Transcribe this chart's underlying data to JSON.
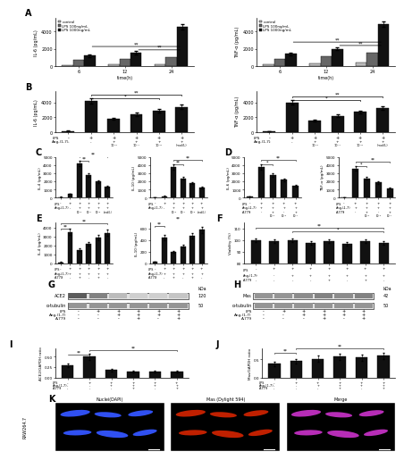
{
  "panel_A": {
    "IL6": {
      "groups": [
        "6",
        "12",
        "24"
      ],
      "control": [
        150,
        200,
        250
      ],
      "LPS100": [
        700,
        800,
        1000
      ],
      "LPS1000": [
        1200,
        1500,
        4500
      ],
      "ylabel": "IL-6 (pg/mL)",
      "xlabel": "time(h)",
      "ylim": [
        0,
        5500
      ]
    },
    "TNFa": {
      "groups": [
        "6",
        "12",
        "24"
      ],
      "control": [
        200,
        300,
        400
      ],
      "LPS100": [
        800,
        1100,
        1500
      ],
      "LPS1000": [
        1400,
        2000,
        4800
      ],
      "ylabel": "TNF-α (pg/mL)",
      "xlabel": "time(h)",
      "ylim": [
        0,
        5500
      ]
    }
  },
  "panel_B": {
    "IL6": {
      "values": [
        150,
        4200,
        1800,
        2400,
        2900,
        3400
      ],
      "ylabel": "IL-6 (pg/mL)",
      "ylim": [
        0,
        5500
      ],
      "lps_signs": [
        "-",
        "+",
        "+",
        "+",
        "+",
        "+"
      ],
      "ang_signs": [
        "-",
        "-",
        "+",
        "+",
        "+",
        "+"
      ],
      "ang_labels": [
        "",
        "",
        "10⁻⁶",
        "10⁻⁷",
        "10⁻⁸",
        "(mol/L)"
      ]
    },
    "TNFa": {
      "values": [
        50,
        4000,
        1600,
        2200,
        2700,
        3200
      ],
      "ylabel": "TNF-α (pg/mL)",
      "ylim": [
        0,
        5500
      ],
      "lps_signs": [
        "-",
        "+",
        "+",
        "+",
        "+",
        "+"
      ],
      "ang_signs": [
        "-",
        "-",
        "+",
        "+",
        "+",
        "+"
      ],
      "ang_labels": [
        "",
        "",
        "10⁻⁶",
        "10⁻⁷",
        "10⁻⁸",
        "(mol/L)"
      ]
    }
  },
  "panel_C": {
    "IL4": {
      "values": [
        100,
        500,
        4200,
        2800,
        2000,
        1400
      ],
      "ylabel": "IL-4 (pg/mL)",
      "ylim": [
        0,
        5000
      ],
      "lps_signs": [
        "-",
        "+",
        "+",
        "+",
        "+",
        "+"
      ],
      "ang_signs": [
        "-",
        "-",
        "+",
        "+",
        "+",
        "+"
      ],
      "ang_labels": [
        "",
        "",
        "10⁻⁶",
        "10⁻⁷",
        "10⁻⁸",
        "(mol/L)"
      ]
    },
    "IL10": {
      "values": [
        50,
        200,
        3800,
        2400,
        1800,
        1300
      ],
      "ylabel": "IL-10 (pg/mL)",
      "ylim": [
        0,
        5000
      ],
      "lps_signs": [
        "-",
        "+",
        "+",
        "+",
        "+",
        "+"
      ],
      "ang_signs": [
        "-",
        "-",
        "+",
        "+",
        "+",
        "+"
      ],
      "ang_labels": [
        "",
        "",
        "10⁻⁶",
        "10⁻⁷",
        "10⁻⁸",
        "(mol/L)"
      ]
    }
  },
  "panel_D": {
    "IL6": {
      "values": [
        150,
        3800,
        2800,
        2200,
        1500
      ],
      "ylabel": "IL-6 (pg/mL)",
      "ylim": [
        0,
        5000
      ],
      "lps_signs": [
        "-",
        "+",
        "+",
        "+",
        "+"
      ],
      "ang_signs": [
        "-",
        "+",
        "+",
        "+",
        "+"
      ],
      "a779_signs": [
        "-",
        "-",
        "+",
        "-",
        "+"
      ],
      "a779_labels": [
        "",
        "",
        "10⁻⁵",
        "10⁻⁶",
        "10⁻⁷"
      ]
    },
    "TNFa": {
      "values": [
        50,
        3600,
        2400,
        1900,
        1200
      ],
      "ylabel": "TNF-α (pg/mL)",
      "ylim": [
        0,
        5000
      ],
      "lps_signs": [
        "-",
        "+",
        "+",
        "+",
        "+"
      ],
      "ang_signs": [
        "-",
        "+",
        "+",
        "+",
        "+"
      ],
      "a779_signs": [
        "-",
        "-",
        "+",
        "-",
        "+"
      ],
      "a779_labels": [
        "",
        "",
        "10⁻⁵",
        "10⁻⁶",
        "10⁻⁷"
      ]
    }
  },
  "panel_E": {
    "IL4": {
      "values": [
        150,
        3500,
        1500,
        2200,
        2900,
        3400
      ],
      "ylabel": "IL-4 (pg/mL)",
      "ylim": [
        0,
        4500
      ],
      "lps_signs": [
        "-",
        "+",
        "+",
        "+",
        "+",
        "+"
      ],
      "ang_signs": [
        "-",
        "+",
        "+",
        "+",
        "+",
        "+"
      ],
      "a779_signs": [
        "-",
        "-",
        "+",
        "-",
        "+",
        "-"
      ],
      "a779_labels": [
        "",
        "",
        "10⁻⁵",
        "10⁻⁶",
        "10⁻⁷",
        ""
      ]
    },
    "IL10": {
      "values": [
        30,
        450,
        200,
        300,
        480,
        580
      ],
      "ylabel": "IL-10 (pg/mL)",
      "ylim": [
        0,
        700
      ],
      "lps_signs": [
        "-",
        "+",
        "+",
        "+",
        "+",
        "+"
      ],
      "ang_signs": [
        "-",
        "+",
        "+",
        "+",
        "+",
        "+"
      ],
      "a779_signs": [
        "-",
        "-",
        "+",
        "-",
        "+",
        "-"
      ],
      "a779_labels": [
        "",
        "",
        "10⁻⁵",
        "10⁻⁶",
        "10⁻⁷",
        ""
      ]
    }
  },
  "panel_F": {
    "values": [
      100,
      99,
      100,
      98,
      99,
      97,
      99,
      98
    ],
    "ylabel": "Viability (%)",
    "ylim": [
      80,
      115
    ],
    "lps_signs": [
      "-",
      "+",
      "+",
      "+",
      "+",
      "+",
      "+",
      "+"
    ],
    "ang_signs": [
      "-",
      "-",
      "+",
      "+",
      "+",
      "+",
      "+",
      "+"
    ],
    "a779_signs": [
      "-",
      "-",
      "-",
      "-",
      "+",
      "-",
      "+",
      "-"
    ]
  },
  "panel_G": {
    "bands": [
      "ACE2",
      "α-tubulin"
    ],
    "kda": [
      "120",
      "50"
    ],
    "conditions": [
      "LPS",
      "Ang-(1-7)",
      "A-779"
    ],
    "signs": [
      [
        "-",
        "+",
        "+",
        "+",
        "+",
        "+"
      ],
      [
        "-",
        "-",
        "+",
        "+",
        "+",
        "+"
      ],
      [
        "-",
        "-",
        "-",
        "+",
        "-",
        "+"
      ]
    ],
    "ace2_intensities": [
      0.85,
      0.65,
      0.35,
      0.25,
      0.25,
      0.3
    ],
    "tub_intensities": [
      0.55,
      0.55,
      0.55,
      0.55,
      0.55,
      0.55
    ]
  },
  "panel_H": {
    "bands": [
      "Mas",
      "α-tubulin"
    ],
    "kda": [
      "42",
      "50"
    ],
    "conditions": [
      "LPS",
      "Ang-(1-7)",
      "A-779"
    ],
    "signs": [
      [
        "-",
        "+",
        "+",
        "+",
        "+",
        "+"
      ],
      [
        "-",
        "-",
        "+",
        "+",
        "+",
        "+"
      ],
      [
        "-",
        "-",
        "-",
        "+",
        "-",
        "+"
      ]
    ],
    "mas_intensities": [
      0.55,
      0.55,
      0.6,
      0.65,
      0.6,
      0.65
    ],
    "tub_intensities": [
      0.55,
      0.55,
      0.55,
      0.55,
      0.55,
      0.55
    ]
  },
  "panel_I": {
    "values": [
      0.3,
      0.5,
      0.18,
      0.15,
      0.14,
      0.14
    ],
    "ylabel": "ACE2/GAPDH ratio",
    "ylim": [
      0,
      0.7
    ],
    "lps_signs": [
      "-",
      "+",
      "+",
      "+",
      "+",
      "+"
    ],
    "ang_signs": [
      "-",
      "-",
      "+",
      "+",
      "+",
      "+"
    ],
    "a779_signs": [
      "-",
      "-",
      "-",
      "+",
      "-",
      "+"
    ]
  },
  "panel_J": {
    "values": [
      0.38,
      0.45,
      0.52,
      0.58,
      0.55,
      0.6
    ],
    "ylabel": "Mas/GAPDH ratio",
    "ylim": [
      0,
      0.8
    ],
    "lps_signs": [
      "-",
      "+",
      "+",
      "+",
      "+",
      "+"
    ],
    "ang_signs": [
      "-",
      "-",
      "+",
      "+",
      "+",
      "+"
    ],
    "a779_signs": [
      "-",
      "-",
      "-",
      "+",
      "-",
      "+"
    ]
  },
  "panel_K": {
    "labels": [
      "Nuclei(DAPI)",
      "Mas (Dylight 594)",
      "Merge"
    ],
    "cell_positions": [
      [
        1.8,
        7.8,
        2.8,
        1.0,
        15
      ],
      [
        4.8,
        7.5,
        2.5,
        0.95,
        -10
      ],
      [
        7.8,
        7.8,
        2.4,
        1.0,
        20
      ],
      [
        2.0,
        3.8,
        2.6,
        0.95,
        5
      ],
      [
        5.2,
        3.5,
        3.0,
        1.0,
        -15
      ],
      [
        8.2,
        3.8,
        2.4,
        0.95,
        25
      ]
    ]
  },
  "bar_color": "#111111",
  "bar_light": "#666666",
  "bar_lighter": "#bbbbbb",
  "legend_labels": [
    "control",
    "LPS 100ng/mL",
    "LPS 1000ng/mL"
  ]
}
